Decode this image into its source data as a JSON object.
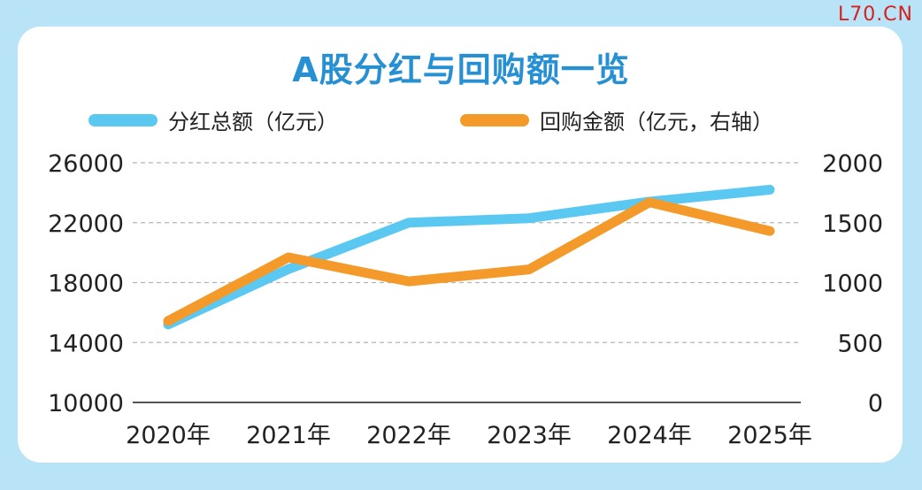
{
  "watermark": "L70.CN",
  "chart_data": {
    "type": "line",
    "title": "A股分红与回购额一览",
    "categories": [
      "2020年",
      "2021年",
      "2022年",
      "2023年",
      "2024年",
      "2025年"
    ],
    "series": [
      {
        "name": "分红总额（亿元）",
        "axis": "left",
        "color": "#5bc8f2",
        "values": [
          15200,
          18900,
          22000,
          22300,
          23400,
          24200
        ]
      },
      {
        "name": "回购金额（亿元，右轴）",
        "axis": "right",
        "color": "#f39a2b",
        "values": [
          680,
          1210,
          1010,
          1110,
          1670,
          1430
        ]
      }
    ],
    "y_left": {
      "min": 10000,
      "max": 26000,
      "ticks": [
        10000,
        14000,
        18000,
        22000,
        26000
      ]
    },
    "y_right": {
      "min": 0,
      "max": 2000,
      "ticks": [
        0,
        500,
        1000,
        1500,
        2000
      ]
    },
    "grid": true,
    "legend_position": "top"
  }
}
